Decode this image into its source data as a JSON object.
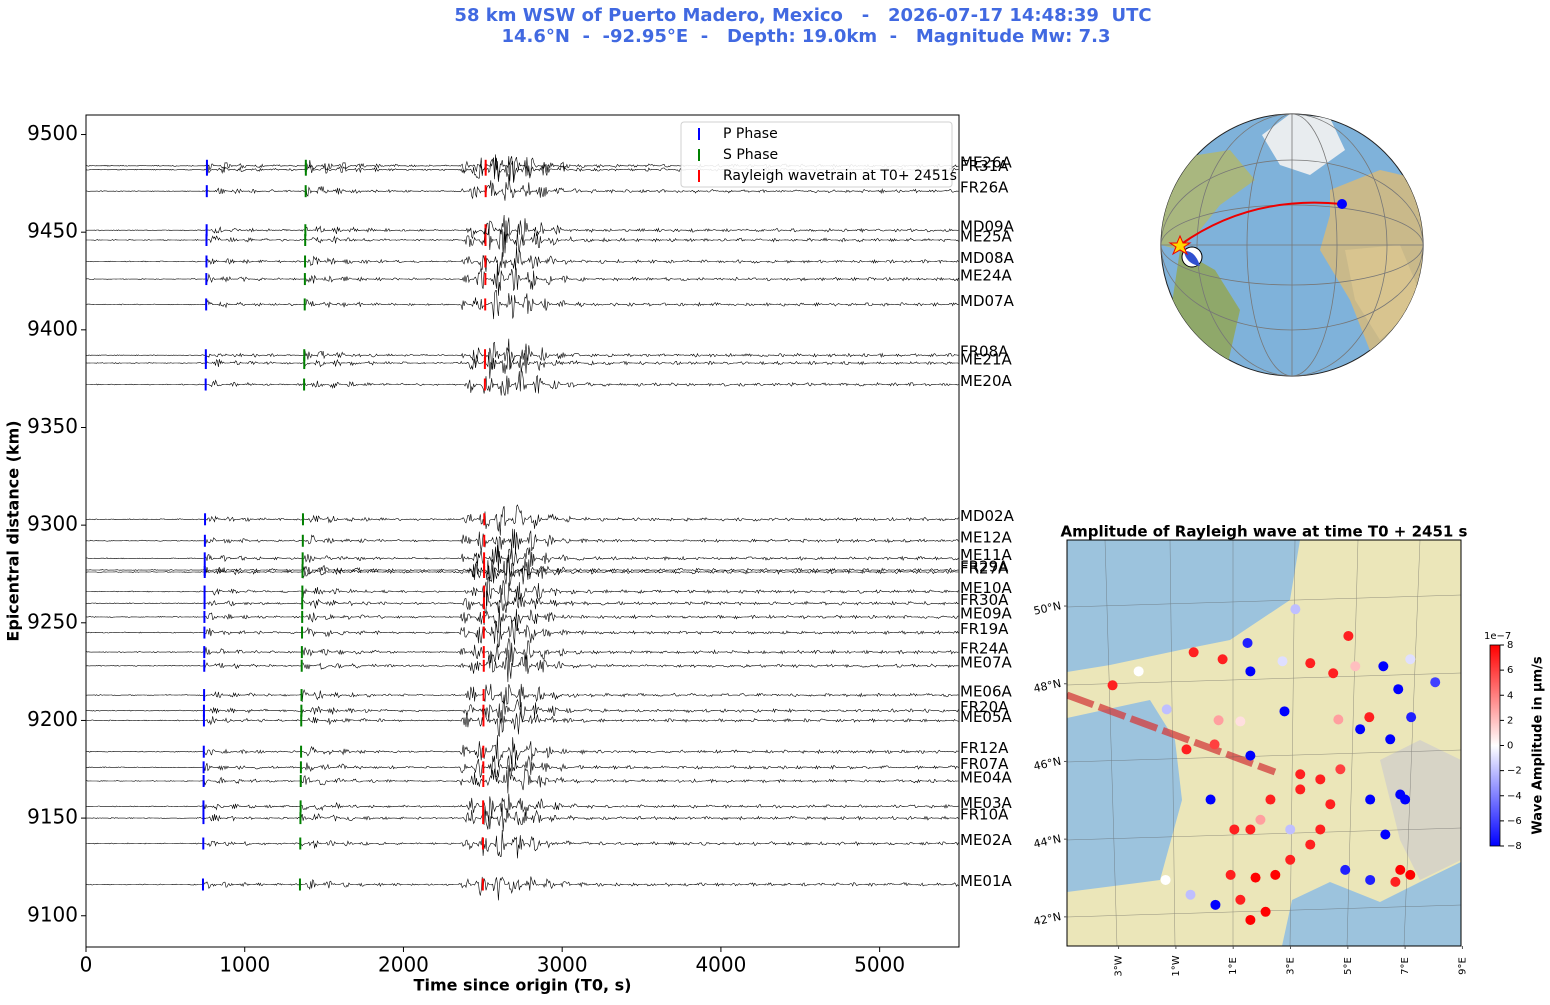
{
  "header": {
    "title_lines": [
      "58 km WSW of Puerto Madero, Mexico   -   2026-07-17 14:48:39  UTC",
      "14.6°N  -  -92.95°E  -   Depth: 19.0km  -   Magnitude Mw: 7.3"
    ]
  },
  "chart_data": [
    {
      "type": "section",
      "xlabel": "Time since origin (T0, s)",
      "ylabel": "Epicentral distance (km)",
      "xlim": [
        0,
        5500
      ],
      "xticks": [
        0,
        1000,
        2000,
        3000,
        4000,
        5000
      ],
      "ylim": [
        9084,
        9510
      ],
      "yticks": [
        9100,
        9150,
        9200,
        9250,
        9300,
        9350,
        9400,
        9450,
        9500
      ],
      "legend": "upper right",
      "stations": [
        "ME26A",
        "FR31A",
        "FR26A",
        "MD09A",
        "ME25A",
        "MD08A",
        "ME24A",
        "MD07A",
        "FR08A",
        "ME21A",
        "ME20A",
        "MD02A",
        "ME12A",
        "ME11A",
        "FR29A",
        "FR27A",
        "ME10A",
        "FR30A",
        "ME09A",
        "FR19A",
        "FR24A",
        "ME07A",
        "ME06A",
        "FR20A",
        "ME05A",
        "FR12A",
        "FR07A",
        "ME04A",
        "ME03A",
        "FR10A",
        "ME02A",
        "ME01A"
      ],
      "distances": [
        9484,
        9482,
        9471,
        9451,
        9446,
        9435,
        9426,
        9413,
        9387,
        9383,
        9372,
        9303,
        9292,
        9283,
        9277,
        9276,
        9266,
        9260,
        9253,
        9245,
        9235,
        9228,
        9213,
        9205,
        9200,
        9184,
        9176,
        9169,
        9156,
        9150,
        9137,
        9116
      ],
      "phases": [
        {
          "name": "P Phase",
          "color": "#0000ff",
          "values": [
            762,
            762,
            761,
            760,
            759,
            759,
            758,
            757,
            755,
            755,
            754,
            750,
            749,
            748,
            748,
            748,
            747,
            747,
            746,
            746,
            745,
            745,
            744,
            743,
            743,
            742,
            741,
            741,
            740,
            740,
            739,
            737
          ]
        },
        {
          "name": "S Phase",
          "color": "#008000",
          "values": [
            1385,
            1385,
            1384,
            1382,
            1381,
            1380,
            1379,
            1378,
            1375,
            1375,
            1374,
            1367,
            1366,
            1365,
            1364,
            1364,
            1363,
            1362,
            1362,
            1361,
            1360,
            1359,
            1358,
            1357,
            1356,
            1355,
            1354,
            1353,
            1352,
            1351,
            1350,
            1348
          ]
        },
        {
          "name": "Rayleigh wavetrain at T0+ 2451s",
          "color": "#ff0000",
          "values": [
            2518,
            2518,
            2518,
            2517,
            2517,
            2516,
            2516,
            2515,
            2514,
            2513,
            2513,
            2509,
            2509,
            2508,
            2508,
            2508,
            2508,
            2507,
            2507,
            2506,
            2506,
            2506,
            2505,
            2504,
            2504,
            2503,
            2503,
            2503,
            2502,
            2502,
            2501,
            2500
          ]
        }
      ]
    },
    {
      "type": "map",
      "title": "Amplitude of Rayleigh wave at time T0 + 2451 s",
      "xlim": [
        -4.8,
        8.95
      ],
      "ylim": [
        41.25,
        51.7
      ],
      "xticks": [
        {
          "value": -3,
          "label": "3°W"
        },
        {
          "value": -1,
          "label": "1°W"
        },
        {
          "value": 1,
          "label": "1°E"
        },
        {
          "value": 3,
          "label": "3°E"
        },
        {
          "value": 5,
          "label": "5°E"
        },
        {
          "value": 7,
          "label": "7°E"
        },
        {
          "value": 9,
          "label": "9°E"
        }
      ],
      "yticks": [
        {
          "value": 42,
          "label": "42°N"
        },
        {
          "value": 44,
          "label": "44°N"
        },
        {
          "value": 46,
          "label": "46°N"
        },
        {
          "value": 48,
          "label": "48°N"
        },
        {
          "value": 50,
          "label": "50°N"
        }
      ],
      "x": [
        3.17,
        5.02,
        1.5,
        0.63,
        -0.38,
        1.6,
        2.72,
        3.69,
        4.49,
        5.26,
        6.24,
        7.18,
        8.05,
        6.76,
        7.21,
        5.75,
        4.67,
        2.79,
        0.49,
        -0.63,
        0.35,
        1.6,
        1.25,
        -3.21,
        -2.3,
        -1.32,
        5.43,
        6.48,
        6.83,
        7.0,
        5.78,
        6.31,
        6.83,
        7.18,
        6.66,
        5.78,
        4.91,
        3.69,
        2.99,
        2.47,
        1.78,
        0.91,
        1.25,
        2.13,
        1.6,
        0.38,
        -1.36,
        -0.49,
        0.21,
        1.95,
        1.6,
        2.3,
        3.34,
        4.04,
        4.74,
        2.99,
        4.39,
        4.04,
        3.34,
        1.04
      ],
      "y": [
        49.92,
        49.23,
        49.05,
        48.63,
        48.81,
        48.32,
        48.58,
        48.53,
        48.27,
        48.45,
        48.45,
        48.63,
        48.04,
        47.86,
        47.14,
        47.14,
        47.08,
        47.29,
        47.06,
        46.31,
        46.44,
        46.15,
        47.03,
        47.96,
        48.32,
        47.34,
        46.83,
        46.57,
        45.15,
        45.02,
        45.02,
        44.12,
        43.21,
        43.08,
        42.9,
        42.95,
        43.21,
        43.86,
        43.47,
        43.08,
        43.01,
        43.08,
        42.44,
        42.13,
        41.92,
        42.31,
        42.95,
        42.57,
        45.02,
        44.5,
        44.25,
        45.02,
        45.28,
        45.54,
        45.8,
        44.25,
        44.9,
        44.25,
        45.67,
        44.25
      ],
      "values": [
        -2,
        7,
        -7,
        7,
        7,
        -8,
        -1,
        7,
        7,
        2,
        -8,
        -1,
        -6,
        -8,
        -7,
        7,
        3,
        -8,
        3,
        7,
        6,
        -8,
        1,
        7,
        0,
        -2,
        -8,
        -8,
        -8,
        -8,
        -8,
        -8,
        8,
        8,
        7,
        -7,
        -7,
        7,
        7,
        8,
        8,
        7,
        7,
        8,
        8,
        -8,
        0,
        -2,
        -8,
        3,
        7,
        7,
        7,
        7,
        6,
        -2,
        7,
        7,
        7,
        7
      ],
      "colorbar": {
        "label": "Wave Amplitude in µm/s",
        "offset": "1e−7",
        "lim": [
          -8,
          8
        ],
        "ticks": [
          {
            "value": -8,
            "label": "−8"
          },
          {
            "value": -6,
            "label": "−6"
          },
          {
            "value": -4,
            "label": "−4"
          },
          {
            "value": -2,
            "label": "−2"
          },
          0,
          2,
          4,
          6,
          8
        ]
      }
    }
  ]
}
